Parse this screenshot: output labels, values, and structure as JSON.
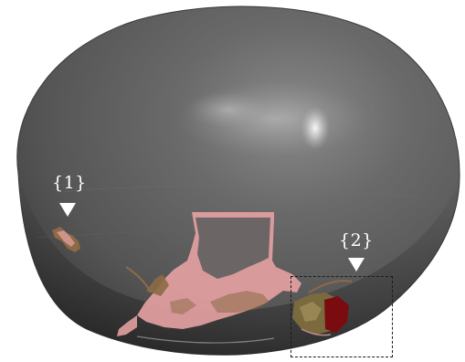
{
  "annotations": {
    "label_1": "{1}",
    "label_2": "{2}"
  },
  "colors": {
    "background": "#ffffff",
    "surface_base": "#606060",
    "surface_shadow": "#3c3c3c",
    "highlight": "#f2f2f2",
    "deposit_pink": "#e4a1a1",
    "deposit_brown": "#8c6a46",
    "deposit_dark_red": "#7a0c10",
    "annotation": "#ffffff",
    "box_outline": "#1a1a1a"
  },
  "icons": {
    "marker_1": "triangle-down",
    "marker_2": "triangle-down"
  }
}
